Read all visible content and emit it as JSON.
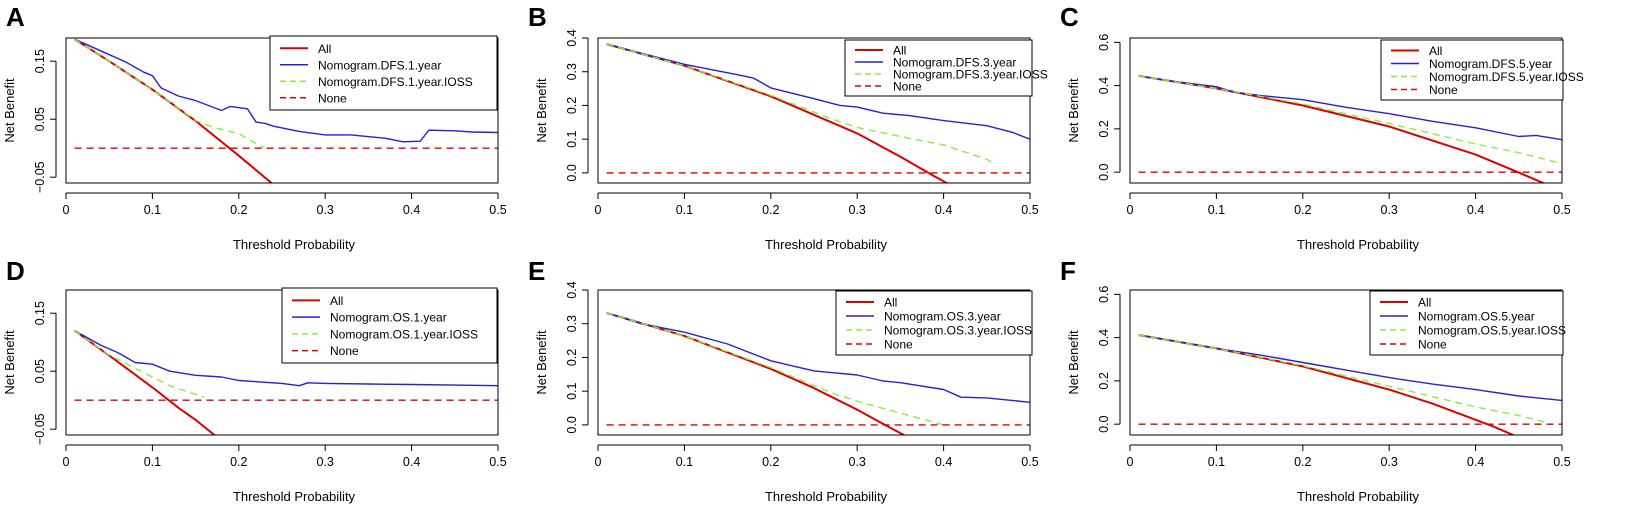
{
  "figure": {
    "panel_count": 6
  },
  "chart_data": [
    {
      "panel": "A",
      "type": "line",
      "xlabel": "Threshold Probability",
      "ylabel": "Net Benefit",
      "xlim": [
        0,
        0.5
      ],
      "ylim": [
        -0.06,
        0.19
      ],
      "x_ticks": [
        0.0,
        0.1,
        0.2,
        0.3,
        0.4,
        0.5
      ],
      "y_ticks": [
        -0.05,
        0.05,
        0.15
      ],
      "y_tick_labels": [
        "−0.05",
        "0.05",
        "0.15"
      ],
      "legend_position": "top-right",
      "series": [
        {
          "name": "All",
          "color": "#dd0000",
          "style": "solid",
          "x": [
            0.01,
            0.05,
            0.1,
            0.15,
            0.2,
            0.245
          ],
          "y": [
            0.188,
            0.15,
            0.101,
            0.047,
            -0.013,
            -0.069
          ]
        },
        {
          "name": "Nomogram.DFS.1.year",
          "color": "#2222dd",
          "style": "solid",
          "x": [
            0.01,
            0.04,
            0.07,
            0.09,
            0.1,
            0.11,
            0.13,
            0.15,
            0.18,
            0.19,
            0.21,
            0.22,
            0.23,
            0.24,
            0.27,
            0.3,
            0.33,
            0.37,
            0.39,
            0.41,
            0.42,
            0.45,
            0.47,
            0.5
          ],
          "y": [
            0.188,
            0.168,
            0.148,
            0.131,
            0.125,
            0.104,
            0.09,
            0.082,
            0.065,
            0.072,
            0.068,
            0.045,
            0.043,
            0.038,
            0.029,
            0.023,
            0.023,
            0.017,
            0.011,
            0.012,
            0.031,
            0.03,
            0.028,
            0.027
          ]
        },
        {
          "name": "Nomogram.DFS.1.year.IOSS",
          "color": "#88ee44",
          "style": "dashed",
          "x": [
            0.01,
            0.05,
            0.1,
            0.15,
            0.17,
            0.2,
            0.23
          ],
          "y": [
            0.188,
            0.15,
            0.101,
            0.048,
            0.036,
            0.025,
            0.0
          ]
        },
        {
          "name": "None",
          "color": "#dd0000",
          "style": "dashed",
          "x": [
            0.01,
            0.5
          ],
          "y": [
            0.0,
            0.0
          ]
        }
      ]
    },
    {
      "panel": "B",
      "type": "line",
      "xlabel": "Threshold Probability",
      "ylabel": "Net Benefit",
      "xlim": [
        0,
        0.5
      ],
      "ylim": [
        -0.03,
        0.4
      ],
      "x_ticks": [
        0.0,
        0.1,
        0.2,
        0.3,
        0.4,
        0.5
      ],
      "y_ticks": [
        0.0,
        0.1,
        0.2,
        0.3,
        0.4
      ],
      "y_tick_labels": [
        "0.0",
        "0.1",
        "0.2",
        "0.3",
        "0.4"
      ],
      "legend_position": "top-right",
      "series": [
        {
          "name": "All",
          "color": "#dd0000",
          "style": "solid",
          "x": [
            0.01,
            0.1,
            0.2,
            0.3,
            0.35,
            0.39,
            0.425
          ],
          "y": [
            0.382,
            0.318,
            0.227,
            0.117,
            0.048,
            -0.011,
            -0.06
          ]
        },
        {
          "name": "Nomogram.DFS.3.year",
          "color": "#2222dd",
          "style": "solid",
          "x": [
            0.01,
            0.05,
            0.1,
            0.13,
            0.16,
            0.18,
            0.2,
            0.25,
            0.28,
            0.3,
            0.33,
            0.36,
            0.4,
            0.45,
            0.48,
            0.5
          ],
          "y": [
            0.382,
            0.355,
            0.322,
            0.307,
            0.292,
            0.281,
            0.252,
            0.22,
            0.2,
            0.195,
            0.177,
            0.17,
            0.155,
            0.14,
            0.12,
            0.1
          ]
        },
        {
          "name": "Nomogram.DFS.3.year.IOSS",
          "color": "#88ee44",
          "style": "dashed",
          "x": [
            0.01,
            0.1,
            0.2,
            0.27,
            0.3,
            0.35,
            0.4,
            0.45,
            0.46
          ],
          "y": [
            0.382,
            0.318,
            0.23,
            0.16,
            0.135,
            0.108,
            0.083,
            0.04,
            0.025
          ]
        },
        {
          "name": "None",
          "color": "#dd0000",
          "style": "dashed",
          "x": [
            0.01,
            0.5
          ],
          "y": [
            0.0,
            0.0
          ]
        }
      ]
    },
    {
      "panel": "C",
      "type": "line",
      "xlabel": "Threshold Probability",
      "ylabel": "Net Benefit",
      "xlim": [
        0,
        0.5
      ],
      "ylim": [
        -0.05,
        0.62
      ],
      "x_ticks": [
        0.0,
        0.1,
        0.2,
        0.3,
        0.4,
        0.5
      ],
      "y_ticks": [
        0.0,
        0.2,
        0.4,
        0.6
      ],
      "y_tick_labels": [
        "0.0",
        "0.2",
        "0.4",
        "0.6"
      ],
      "legend_position": "top-right",
      "series": [
        {
          "name": "All",
          "color": "#dd0000",
          "style": "solid",
          "x": [
            0.01,
            0.1,
            0.2,
            0.3,
            0.4,
            0.45,
            0.49
          ],
          "y": [
            0.445,
            0.387,
            0.308,
            0.211,
            0.081,
            -0.002,
            -0.07
          ]
        },
        {
          "name": "Nomogram.DFS.5.year",
          "color": "#2222dd",
          "style": "solid",
          "x": [
            0.01,
            0.05,
            0.1,
            0.12,
            0.15,
            0.2,
            0.25,
            0.3,
            0.35,
            0.4,
            0.45,
            0.47,
            0.5
          ],
          "y": [
            0.445,
            0.42,
            0.395,
            0.37,
            0.355,
            0.335,
            0.3,
            0.27,
            0.235,
            0.205,
            0.165,
            0.17,
            0.15
          ]
        },
        {
          "name": "Nomogram.DFS.5.year.IOSS",
          "color": "#88ee44",
          "style": "dashed",
          "x": [
            0.01,
            0.1,
            0.2,
            0.3,
            0.4,
            0.45,
            0.5
          ],
          "y": [
            0.445,
            0.387,
            0.315,
            0.225,
            0.13,
            0.09,
            0.04
          ]
        },
        {
          "name": "None",
          "color": "#dd0000",
          "style": "dashed",
          "x": [
            0.01,
            0.5
          ],
          "y": [
            0.0,
            0.0
          ]
        }
      ]
    },
    {
      "panel": "D",
      "type": "line",
      "xlabel": "Threshold Probability",
      "ylabel": "Net Benefit",
      "xlim": [
        0,
        0.5
      ],
      "ylim": [
        -0.06,
        0.19
      ],
      "x_ticks": [
        0.0,
        0.1,
        0.2,
        0.3,
        0.4,
        0.5
      ],
      "y_ticks": [
        -0.05,
        0.05,
        0.15
      ],
      "y_tick_labels": [
        "−0.05",
        "0.05",
        "0.15"
      ],
      "legend_position": "top-right",
      "series": [
        {
          "name": "All",
          "color": "#dd0000",
          "style": "solid",
          "x": [
            0.01,
            0.05,
            0.1,
            0.13,
            0.15,
            0.175
          ],
          "y": [
            0.12,
            0.077,
            0.022,
            -0.013,
            -0.034,
            -0.064
          ]
        },
        {
          "name": "Nomogram.OS.1.year",
          "color": "#2222dd",
          "style": "solid",
          "x": [
            0.01,
            0.04,
            0.06,
            0.08,
            0.1,
            0.12,
            0.15,
            0.18,
            0.2,
            0.25,
            0.27,
            0.28,
            0.3,
            0.35,
            0.4,
            0.45,
            0.5
          ],
          "y": [
            0.12,
            0.095,
            0.082,
            0.065,
            0.062,
            0.05,
            0.043,
            0.04,
            0.034,
            0.029,
            0.025,
            0.03,
            0.029,
            0.028,
            0.027,
            0.026,
            0.025
          ]
        },
        {
          "name": "Nomogram.OS.1.year.IOSS",
          "color": "#88ee44",
          "style": "dashed",
          "x": [
            0.01,
            0.05,
            0.1,
            0.12,
            0.14,
            0.16
          ],
          "y": [
            0.12,
            0.078,
            0.04,
            0.025,
            0.015,
            0.005
          ]
        },
        {
          "name": "None",
          "color": "#dd0000",
          "style": "dashed",
          "x": [
            0.01,
            0.5
          ],
          "y": [
            0.0,
            0.0
          ]
        }
      ]
    },
    {
      "panel": "E",
      "type": "line",
      "xlabel": "Threshold Probability",
      "ylabel": "Net Benefit",
      "xlim": [
        0,
        0.5
      ],
      "ylim": [
        -0.03,
        0.4
      ],
      "x_ticks": [
        0.0,
        0.1,
        0.2,
        0.3,
        0.4,
        0.5
      ],
      "y_ticks": [
        0.0,
        0.1,
        0.2,
        0.3,
        0.4
      ],
      "y_tick_labels": [
        "0.0",
        "0.1",
        "0.2",
        "0.3",
        "0.4"
      ],
      "legend_position": "top-right",
      "series": [
        {
          "name": "All",
          "color": "#dd0000",
          "style": "solid",
          "x": [
            0.01,
            0.1,
            0.2,
            0.25,
            0.3,
            0.34,
            0.38
          ],
          "y": [
            0.332,
            0.264,
            0.166,
            0.109,
            0.045,
            -0.011,
            -0.065
          ]
        },
        {
          "name": "Nomogram.OS.3.year",
          "color": "#2222dd",
          "style": "solid",
          "x": [
            0.01,
            0.05,
            0.1,
            0.15,
            0.2,
            0.25,
            0.27,
            0.3,
            0.33,
            0.35,
            0.4,
            0.42,
            0.45,
            0.5
          ],
          "y": [
            0.332,
            0.3,
            0.275,
            0.24,
            0.19,
            0.16,
            0.155,
            0.148,
            0.13,
            0.125,
            0.105,
            0.082,
            0.08,
            0.067
          ]
        },
        {
          "name": "Nomogram.OS.3.year.IOSS",
          "color": "#88ee44",
          "style": "dashed",
          "x": [
            0.01,
            0.1,
            0.2,
            0.27,
            0.3,
            0.35,
            0.4
          ],
          "y": [
            0.332,
            0.264,
            0.17,
            0.095,
            0.07,
            0.035,
            0.0
          ]
        },
        {
          "name": "None",
          "color": "#dd0000",
          "style": "dashed",
          "x": [
            0.01,
            0.5
          ],
          "y": [
            0.0,
            0.0
          ]
        }
      ]
    },
    {
      "panel": "F",
      "type": "line",
      "xlabel": "Threshold Probability",
      "ylabel": "Net Benefit",
      "xlim": [
        0,
        0.5
      ],
      "ylim": [
        -0.05,
        0.62
      ],
      "x_ticks": [
        0.0,
        0.1,
        0.2,
        0.3,
        0.4,
        0.5
      ],
      "y_ticks": [
        0.0,
        0.2,
        0.4,
        0.6
      ],
      "y_tick_labels": [
        "0.0",
        "0.2",
        "0.4",
        "0.6"
      ],
      "legend_position": "top-right",
      "series": [
        {
          "name": "All",
          "color": "#dd0000",
          "style": "solid",
          "x": [
            0.01,
            0.1,
            0.2,
            0.3,
            0.35,
            0.42,
            0.455
          ],
          "y": [
            0.412,
            0.35,
            0.267,
            0.16,
            0.095,
            -0.01,
            -0.07
          ]
        },
        {
          "name": "Nomogram.OS.5.year",
          "color": "#2222dd",
          "style": "solid",
          "x": [
            0.01,
            0.05,
            0.1,
            0.15,
            0.2,
            0.25,
            0.3,
            0.35,
            0.4,
            0.45,
            0.5
          ],
          "y": [
            0.412,
            0.385,
            0.35,
            0.32,
            0.285,
            0.25,
            0.215,
            0.185,
            0.16,
            0.13,
            0.11
          ]
        },
        {
          "name": "Nomogram.OS.5.year.IOSS",
          "color": "#88ee44",
          "style": "dashed",
          "x": [
            0.01,
            0.1,
            0.2,
            0.3,
            0.4,
            0.45,
            0.48
          ],
          "y": [
            0.412,
            0.35,
            0.27,
            0.175,
            0.08,
            0.04,
            0.01
          ]
        },
        {
          "name": "None",
          "color": "#dd0000",
          "style": "dashed",
          "x": [
            0.01,
            0.5
          ],
          "y": [
            0.0,
            0.0
          ]
        }
      ]
    }
  ]
}
